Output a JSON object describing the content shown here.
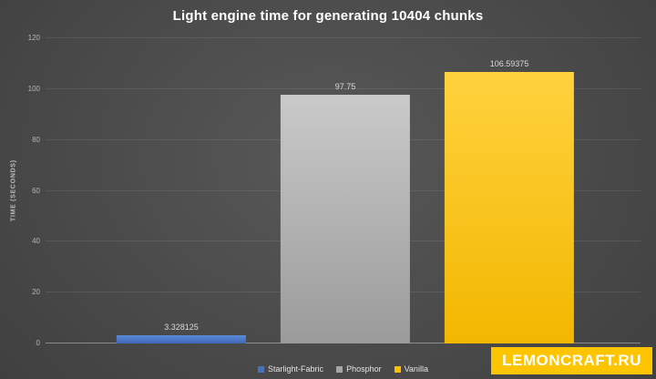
{
  "watermark": "LEMONCRAFT.RU",
  "brand": {
    "text": "LEMONCRAFT.RU",
    "bg": "#fdc400",
    "fg": "#ffffff"
  },
  "chart_data": {
    "type": "bar",
    "title": "Light engine time for generating 10404 chunks",
    "xlabel": "",
    "ylabel": "TIME (SECONDS)",
    "ylim": [
      0,
      120
    ],
    "yticks": [
      0,
      20,
      40,
      60,
      80,
      100,
      120
    ],
    "grid": true,
    "legend_position": "bottom",
    "categories": [
      "Starlight-Fabric",
      "Phosphor",
      "Vanilla"
    ],
    "values": [
      3.328125,
      97.75,
      106.59375
    ],
    "value_labels": [
      "3.328125",
      "97.75",
      "106.59375"
    ],
    "colors": [
      {
        "top": "#5b8bd9",
        "bottom": "#3f67b5",
        "legend": "#4472c4"
      },
      {
        "top": "#c9c9c9",
        "bottom": "#9b9b9b",
        "legend": "#a6a6a6"
      },
      {
        "top": "#ffd23e",
        "bottom": "#f2b700",
        "legend": "#ffc000"
      }
    ]
  }
}
